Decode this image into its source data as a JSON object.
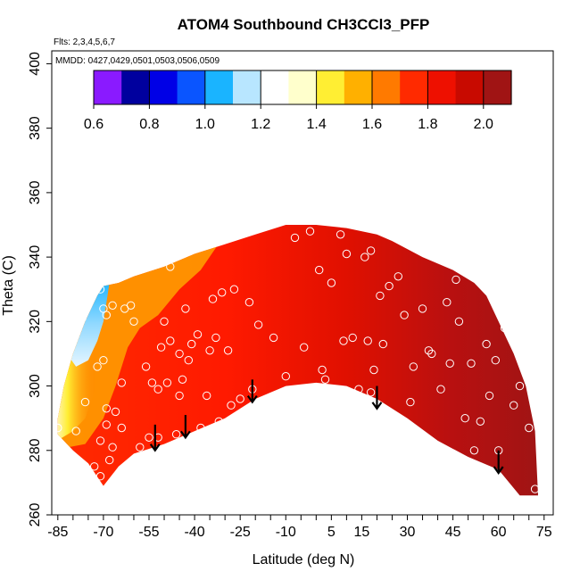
{
  "chart_data": {
    "type": "heatmap",
    "title": "ATOM4 Southbound CH3CCl3_PFP",
    "flights_label": "Flts: 2,3,4,5,6,7",
    "dates_label": "MMDD: 0427,0429,0501,0503,0506,0509",
    "xlabel": "Latitude (deg N)",
    "ylabel": "Theta (C)",
    "xlim": [
      -87,
      78
    ],
    "ylim": [
      260,
      404
    ],
    "x_ticks": [
      -85,
      -70,
      -55,
      -40,
      -25,
      -10,
      5,
      15,
      30,
      45,
      60,
      75
    ],
    "y_ticks": [
      260,
      280,
      300,
      320,
      340,
      360,
      380,
      400
    ],
    "colorbar": {
      "min": 0.6,
      "max": 2.1,
      "ticks": [
        "0.6",
        "0.8",
        "1.0",
        "1.2",
        "1.4",
        "1.6",
        "1.8",
        "2.0"
      ],
      "colors": [
        "#8a1aff",
        "#00009e",
        "#0000e6",
        "#0a55ff",
        "#1ab4ff",
        "#b8e6ff",
        "#ffffff",
        "#ffffcc",
        "#ffee33",
        "#ffb000",
        "#ff7a00",
        "#ff2a00",
        "#ee1000",
        "#c80a00",
        "#a01414"
      ]
    },
    "surface_top": [
      [
        -70,
        331
      ],
      [
        -65,
        332
      ],
      [
        -60,
        334
      ],
      [
        -50,
        337
      ],
      [
        -40,
        341
      ],
      [
        -30,
        344
      ],
      [
        -20,
        347
      ],
      [
        -10,
        350
      ],
      [
        0,
        350
      ],
      [
        10,
        349
      ],
      [
        20,
        347
      ],
      [
        25,
        345
      ],
      [
        35,
        340
      ],
      [
        45,
        336
      ],
      [
        52,
        332
      ],
      [
        56,
        328
      ],
      [
        60,
        320
      ],
      [
        65,
        310
      ],
      [
        69,
        300
      ],
      [
        72,
        286
      ],
      [
        73,
        266
      ]
    ],
    "surface_bottom": [
      [
        -85,
        285
      ],
      [
        -80,
        280
      ],
      [
        -75,
        276
      ],
      [
        -70,
        269
      ],
      [
        -65,
        275
      ],
      [
        -60,
        279
      ],
      [
        -50,
        282
      ],
      [
        -40,
        286
      ],
      [
        -30,
        290
      ],
      [
        -20,
        296
      ],
      [
        -10,
        300
      ],
      [
        0,
        301
      ],
      [
        10,
        300
      ],
      [
        20,
        296
      ],
      [
        30,
        290
      ],
      [
        40,
        283
      ],
      [
        50,
        278
      ],
      [
        60,
        274
      ],
      [
        67,
        266
      ]
    ],
    "surface_left": [
      [
        -85,
        285
      ],
      [
        -85,
        290
      ],
      [
        -83,
        300
      ],
      [
        -80,
        310
      ],
      [
        -76,
        320
      ],
      [
        -72,
        328
      ],
      [
        -70,
        331
      ]
    ],
    "points": [
      [
        -85,
        287
      ],
      [
        -81,
        320
      ],
      [
        -79,
        286
      ],
      [
        -77,
        321
      ],
      [
        -76,
        295
      ],
      [
        -73,
        275
      ],
      [
        -72,
        306
      ],
      [
        -71,
        283
      ],
      [
        -71,
        272
      ],
      [
        -71,
        330
      ],
      [
        -70,
        308
      ],
      [
        -70,
        324
      ],
      [
        -69,
        322
      ],
      [
        -69,
        293
      ],
      [
        -69,
        288
      ],
      [
        -68,
        277
      ],
      [
        -67,
        325
      ],
      [
        -67,
        281
      ],
      [
        -66,
        292
      ],
      [
        -64,
        287
      ],
      [
        -64,
        301
      ],
      [
        -63,
        324
      ],
      [
        -61,
        325
      ],
      [
        -60,
        320
      ],
      [
        -58,
        281
      ],
      [
        -56,
        306
      ],
      [
        -55,
        284
      ],
      [
        -54,
        301
      ],
      [
        -52,
        299
      ],
      [
        -52,
        284
      ],
      [
        -51,
        312
      ],
      [
        -50,
        320
      ],
      [
        -49,
        301
      ],
      [
        -48,
        314
      ],
      [
        -48,
        337
      ],
      [
        -46,
        285
      ],
      [
        -45,
        297
      ],
      [
        -45,
        310
      ],
      [
        -44,
        302
      ],
      [
        -43,
        324
      ],
      [
        -42,
        308
      ],
      [
        -41,
        313
      ],
      [
        -39,
        316
      ],
      [
        -38,
        287
      ],
      [
        -36,
        297
      ],
      [
        -35,
        311
      ],
      [
        -34,
        327
      ],
      [
        -33,
        315
      ],
      [
        -32,
        289
      ],
      [
        -31,
        329
      ],
      [
        -29,
        311
      ],
      [
        -28,
        294
      ],
      [
        -27,
        330
      ],
      [
        -25,
        296
      ],
      [
        -22,
        326
      ],
      [
        -21,
        299
      ],
      [
        -19,
        319
      ],
      [
        -17,
        288
      ],
      [
        -14,
        315
      ],
      [
        -10,
        303
      ],
      [
        -7,
        346
      ],
      [
        -4,
        312
      ],
      [
        -2,
        348
      ],
      [
        1,
        336
      ],
      [
        2,
        305
      ],
      [
        3,
        302
      ],
      [
        5,
        332
      ],
      [
        8,
        347
      ],
      [
        9,
        314
      ],
      [
        10,
        341
      ],
      [
        12,
        315
      ],
      [
        14,
        299
      ],
      [
        16,
        340
      ],
      [
        17,
        314
      ],
      [
        18,
        298
      ],
      [
        18,
        342
      ],
      [
        19,
        305
      ],
      [
        21,
        328
      ],
      [
        22,
        313
      ],
      [
        24,
        331
      ],
      [
        27,
        334
      ],
      [
        29,
        322
      ],
      [
        31,
        295
      ],
      [
        32,
        306
      ],
      [
        35,
        324
      ],
      [
        37,
        311
      ],
      [
        38,
        310
      ],
      [
        41,
        299
      ],
      [
        43,
        326
      ],
      [
        44,
        307
      ],
      [
        46,
        333
      ],
      [
        47,
        320
      ],
      [
        49,
        290
      ],
      [
        51,
        307
      ],
      [
        52,
        280
      ],
      [
        54,
        289
      ],
      [
        56,
        313
      ],
      [
        57,
        297
      ],
      [
        59,
        308
      ],
      [
        60,
        280
      ],
      [
        62,
        318
      ],
      [
        64,
        330
      ],
      [
        65,
        294
      ],
      [
        67,
        300
      ],
      [
        70,
        287
      ],
      [
        72,
        268
      ]
    ],
    "arrows": [
      {
        "lat": -53,
        "theta_top": 288,
        "theta_bottom": 280
      },
      {
        "lat": -43,
        "theta_top": 291,
        "theta_bottom": 284
      },
      {
        "lat": -21,
        "theta_top": 302,
        "theta_bottom": 295
      },
      {
        "lat": 20,
        "theta_top": 300,
        "theta_bottom": 293
      },
      {
        "lat": 60,
        "theta_top": 280,
        "theta_bottom": 273
      }
    ]
  }
}
